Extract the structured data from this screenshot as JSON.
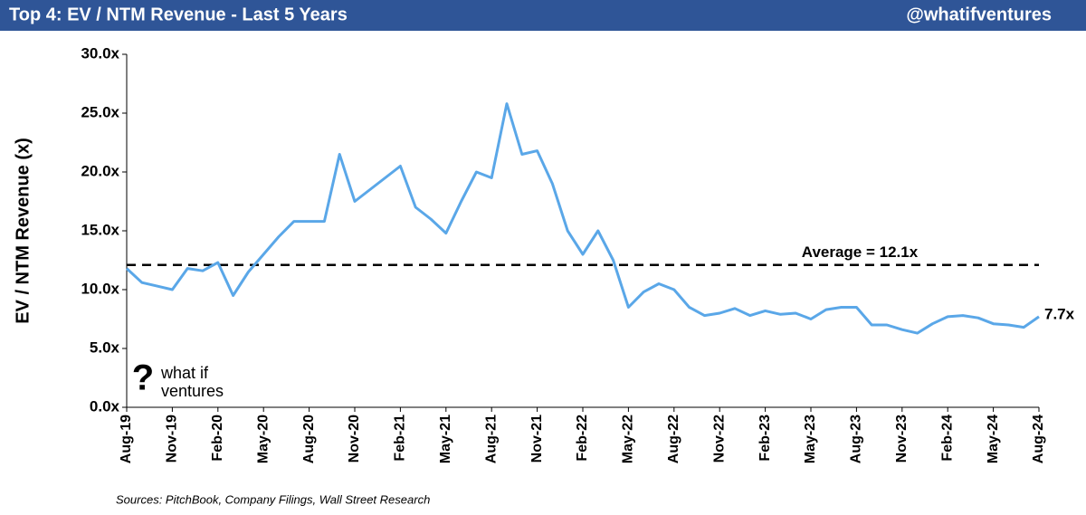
{
  "chart_data": {
    "type": "line",
    "title": "Top 4: EV / NTM Revenue - Last 5 Years",
    "handle": "@whatifventures",
    "y_label": "EV / NTM Revenue (x)",
    "source": "Sources: PitchBook, Company Filings, Wall Street Research",
    "logo": {
      "mark": "?",
      "line1": "what if",
      "line2": "ventures"
    },
    "categories": [
      "Aug-19",
      null,
      null,
      "Nov-19",
      null,
      null,
      "Feb-20",
      null,
      null,
      "May-20",
      null,
      null,
      "Aug-20",
      null,
      null,
      "Nov-20",
      null,
      null,
      "Feb-21",
      null,
      null,
      "May-21",
      null,
      null,
      "Aug-21",
      null,
      null,
      "Nov-21",
      null,
      null,
      "Feb-22",
      null,
      null,
      "May-22",
      null,
      null,
      "Aug-22",
      null,
      null,
      "Nov-22",
      null,
      null,
      "Feb-23",
      null,
      null,
      "May-23",
      null,
      null,
      "Aug-23",
      null,
      null,
      "Nov-23",
      null,
      null,
      "Feb-24",
      null,
      null,
      "May-24",
      null,
      null,
      "Aug-24"
    ],
    "series": [
      {
        "name": "EV / NTM Revenue",
        "color": "#5aa7e8",
        "values": [
          11.8,
          10.6,
          10.3,
          10.0,
          11.8,
          11.6,
          12.3,
          9.5,
          11.5,
          13.0,
          14.5,
          15.8,
          15.8,
          15.8,
          21.5,
          17.5,
          18.5,
          19.5,
          20.5,
          17.0,
          16.0,
          14.8,
          17.5,
          20.0,
          19.5,
          25.8,
          21.5,
          21.8,
          19.0,
          15.0,
          13.0,
          15.0,
          12.5,
          8.5,
          9.8,
          10.5,
          10.0,
          8.5,
          7.8,
          8.0,
          8.4,
          7.8,
          8.2,
          7.9,
          8.0,
          7.5,
          8.3,
          8.5,
          8.5,
          7.0,
          7.0,
          6.6,
          6.3,
          7.1,
          7.7,
          7.8,
          7.6,
          7.1,
          7.0,
          6.8,
          7.7
        ]
      }
    ],
    "last_value_label": "7.7x",
    "average": 12.1,
    "average_label": "Average = 12.1x",
    "ylim": [
      0,
      30
    ],
    "yticks": [
      {
        "value": 0,
        "label": "0.0x"
      },
      {
        "value": 5,
        "label": "5.0x"
      },
      {
        "value": 10,
        "label": "10.0x"
      },
      {
        "value": 15,
        "label": "15.0x"
      },
      {
        "value": 20,
        "label": "20.0x"
      },
      {
        "value": 25,
        "label": "25.0x"
      },
      {
        "value": 30,
        "label": "30.0x"
      }
    ]
  }
}
